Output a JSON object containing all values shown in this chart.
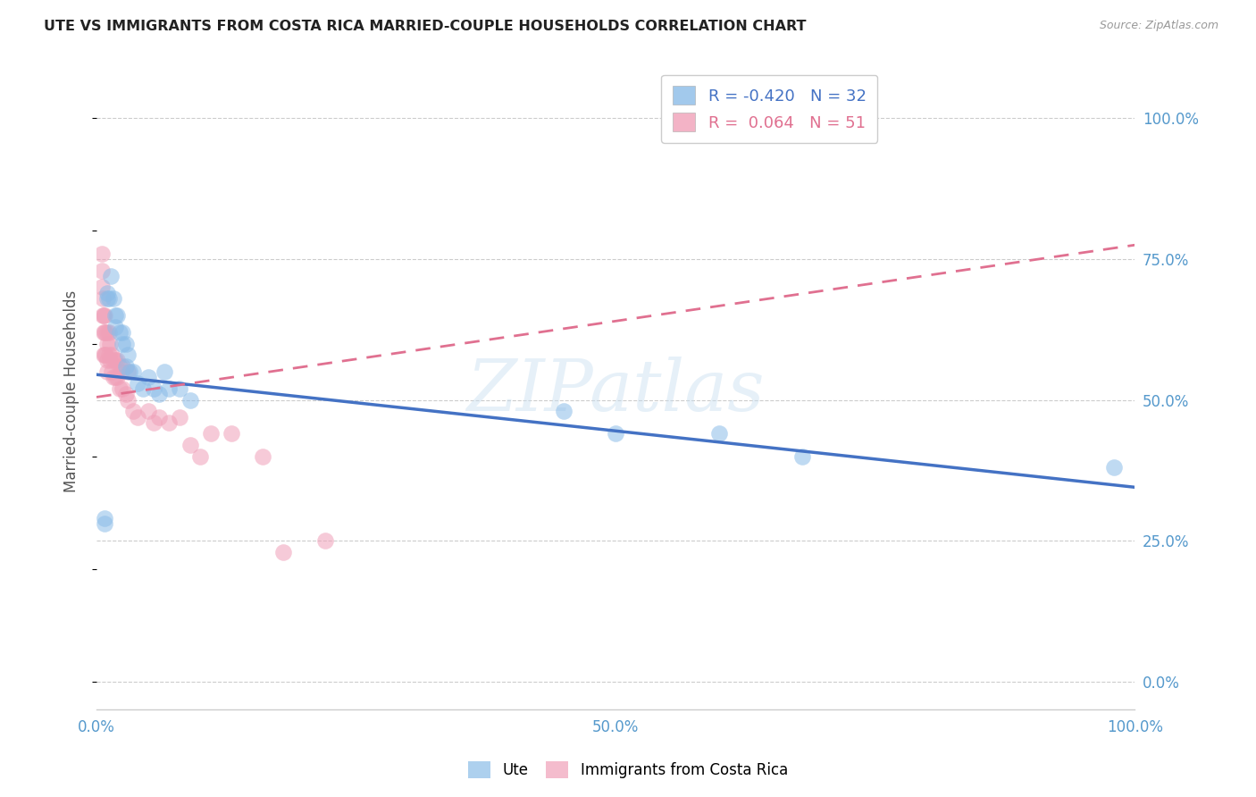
{
  "title": "UTE VS IMMIGRANTS FROM COSTA RICA MARRIED-COUPLE HOUSEHOLDS CORRELATION CHART",
  "source": "Source: ZipAtlas.com",
  "ylabel": "Married-couple Households",
  "background_color": "#ffffff",
  "watermark": "ZIPatlas",
  "blue_color": "#8bbce8",
  "pink_color": "#f0a0b8",
  "line_blue": "#4472c4",
  "line_pink": "#e07090",
  "xlim": [
    0.0,
    1.0
  ],
  "ylim": [
    -0.05,
    1.08
  ],
  "ytick_values": [
    0.0,
    0.25,
    0.5,
    0.75,
    1.0
  ],
  "ytick_labels": [
    "0.0%",
    "25.0%",
    "50.0%",
    "75.0%",
    "100.0%"
  ],
  "xtick_values": [
    0.0,
    0.5,
    1.0
  ],
  "xtick_labels": [
    "0.0%",
    "50.0%",
    "100.0%"
  ],
  "blue_line_x0": 0.0,
  "blue_line_y0": 0.545,
  "blue_line_x1": 1.0,
  "blue_line_y1": 0.345,
  "pink_line_x0": 0.0,
  "pink_line_y0": 0.505,
  "pink_line_x1": 1.0,
  "pink_line_y1": 0.775,
  "ute_x": [
    0.008,
    0.008,
    0.01,
    0.01,
    0.012,
    0.014,
    0.016,
    0.018,
    0.018,
    0.02,
    0.022,
    0.025,
    0.025,
    0.028,
    0.028,
    0.03,
    0.032,
    0.035,
    0.04,
    0.045,
    0.05,
    0.055,
    0.06,
    0.065,
    0.07,
    0.08,
    0.09,
    0.45,
    0.5,
    0.6,
    0.68,
    0.98
  ],
  "ute_y": [
    0.29,
    0.28,
    0.69,
    0.68,
    0.68,
    0.72,
    0.68,
    0.65,
    0.63,
    0.65,
    0.62,
    0.62,
    0.6,
    0.6,
    0.56,
    0.58,
    0.55,
    0.55,
    0.53,
    0.52,
    0.54,
    0.52,
    0.51,
    0.55,
    0.52,
    0.52,
    0.5,
    0.48,
    0.44,
    0.44,
    0.4,
    0.38
  ],
  "cr_x": [
    0.005,
    0.005,
    0.005,
    0.006,
    0.006,
    0.007,
    0.007,
    0.007,
    0.008,
    0.008,
    0.008,
    0.009,
    0.009,
    0.01,
    0.01,
    0.01,
    0.01,
    0.012,
    0.012,
    0.013,
    0.013,
    0.015,
    0.015,
    0.016,
    0.016,
    0.018,
    0.018,
    0.02,
    0.02,
    0.022,
    0.022,
    0.024,
    0.025,
    0.025,
    0.028,
    0.03,
    0.03,
    0.035,
    0.04,
    0.05,
    0.055,
    0.06,
    0.07,
    0.08,
    0.09,
    0.1,
    0.11,
    0.13,
    0.16,
    0.18,
    0.22
  ],
  "cr_y": [
    0.76,
    0.73,
    0.7,
    0.68,
    0.65,
    0.65,
    0.62,
    0.58,
    0.65,
    0.62,
    0.58,
    0.62,
    0.58,
    0.62,
    0.6,
    0.57,
    0.55,
    0.62,
    0.58,
    0.6,
    0.57,
    0.58,
    0.55,
    0.57,
    0.54,
    0.57,
    0.54,
    0.57,
    0.54,
    0.56,
    0.52,
    0.55,
    0.56,
    0.52,
    0.51,
    0.55,
    0.5,
    0.48,
    0.47,
    0.48,
    0.46,
    0.47,
    0.46,
    0.47,
    0.42,
    0.4,
    0.44,
    0.44,
    0.4,
    0.23,
    0.25
  ]
}
